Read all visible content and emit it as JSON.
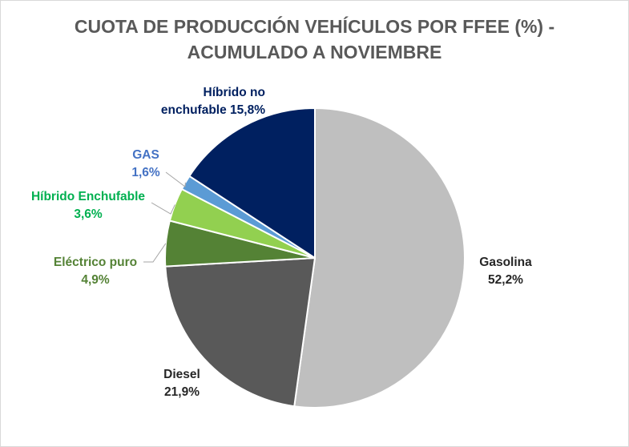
{
  "chart_data": {
    "type": "pie",
    "title_lines": [
      "CUOTA DE PRODUCCIÓN VEHÍCULOS POR FFEE (%)  -",
      "ACUMULADO A NOVIEMBRE"
    ],
    "legend": "none",
    "slices": [
      {
        "name": "Gasolina",
        "value": 52.2,
        "label": "52,2%",
        "color": "#bfbfbf",
        "text_color": "#262626"
      },
      {
        "name": "Diesel",
        "value": 21.9,
        "label": "21,9%",
        "color": "#595959",
        "text_color": "#262626"
      },
      {
        "name": "Eléctrico puro",
        "value": 4.9,
        "label": "4,9%",
        "color": "#548235",
        "text_color": "#548235"
      },
      {
        "name": "Híbrido Enchufable",
        "value": 3.6,
        "label": "3,6%",
        "color": "#92d050",
        "text_color": "#00b050"
      },
      {
        "name": "GAS",
        "value": 1.6,
        "label": "1,6%",
        "color": "#5b9bd5",
        "text_color": "#4472c4"
      },
      {
        "name": "Híbrido no enchufable",
        "name_lines": [
          "Híbrido no",
          "enchufable"
        ],
        "value": 15.8,
        "label": "15,8%",
        "color": "#002060",
        "text_color": "#002060"
      }
    ]
  }
}
